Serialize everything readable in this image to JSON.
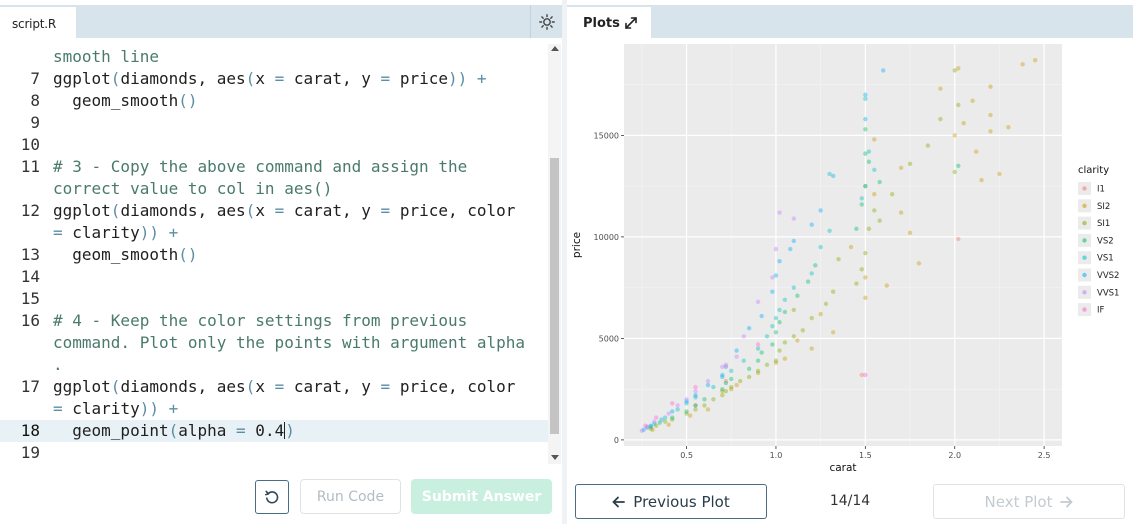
{
  "editor": {
    "tab_label": "script.R",
    "theme_icon": "sun-icon",
    "lines": [
      {
        "num": "",
        "parts": [
          [
            "cm",
            "smooth line"
          ]
        ]
      },
      {
        "num": "7",
        "parts": [
          [
            "",
            "ggplot"
          ],
          [
            "op",
            "("
          ],
          [
            "",
            "diamonds, "
          ],
          [
            "",
            "aes"
          ],
          [
            "op",
            "("
          ],
          [
            "",
            "x "
          ],
          [
            "op",
            "="
          ],
          [
            "",
            " carat, y "
          ],
          [
            "op",
            "="
          ],
          [
            "",
            " price"
          ],
          [
            "op",
            "))"
          ],
          [
            "",
            " "
          ],
          [
            "op",
            "+"
          ]
        ]
      },
      {
        "num": "8",
        "parts": [
          [
            "",
            "  geom_smooth"
          ],
          [
            "op",
            "()"
          ]
        ]
      },
      {
        "num": "9",
        "parts": []
      },
      {
        "num": "10",
        "parts": []
      },
      {
        "num": "11",
        "parts": [
          [
            "cm",
            "# 3 - Copy the above command and assign the"
          ]
        ]
      },
      {
        "num": "",
        "parts": [
          [
            "cm",
            "correct value to col in aes()"
          ]
        ]
      },
      {
        "num": "12",
        "parts": [
          [
            "",
            "ggplot"
          ],
          [
            "op",
            "("
          ],
          [
            "",
            "diamonds, "
          ],
          [
            "",
            "aes"
          ],
          [
            "op",
            "("
          ],
          [
            "",
            "x "
          ],
          [
            "op",
            "="
          ],
          [
            "",
            " carat, y "
          ],
          [
            "op",
            "="
          ],
          [
            "",
            " price, color"
          ]
        ]
      },
      {
        "num": "",
        "parts": [
          [
            "op",
            "="
          ],
          [
            "",
            " clarity"
          ],
          [
            "op",
            "))"
          ],
          [
            "",
            " "
          ],
          [
            "op",
            "+"
          ]
        ]
      },
      {
        "num": "13",
        "parts": [
          [
            "",
            "  geom_smooth"
          ],
          [
            "op",
            "()"
          ]
        ]
      },
      {
        "num": "14",
        "parts": []
      },
      {
        "num": "15",
        "parts": []
      },
      {
        "num": "16",
        "parts": [
          [
            "cm",
            "# 4 - Keep the color settings from previous"
          ]
        ]
      },
      {
        "num": "",
        "parts": [
          [
            "cm",
            "command. Plot only the points with argument alpha"
          ]
        ]
      },
      {
        "num": "",
        "parts": [
          [
            "cm",
            "."
          ]
        ]
      },
      {
        "num": "17",
        "parts": [
          [
            "",
            "ggplot"
          ],
          [
            "op",
            "("
          ],
          [
            "",
            "diamonds, "
          ],
          [
            "",
            "aes"
          ],
          [
            "op",
            "("
          ],
          [
            "",
            "x "
          ],
          [
            "op",
            "="
          ],
          [
            "",
            " carat, y "
          ],
          [
            "op",
            "="
          ],
          [
            "",
            " price, color"
          ]
        ]
      },
      {
        "num": "",
        "parts": [
          [
            "op",
            "="
          ],
          [
            "",
            " clarity"
          ],
          [
            "op",
            "))"
          ],
          [
            "",
            " "
          ],
          [
            "op",
            "+"
          ]
        ]
      },
      {
        "num": "18",
        "active": true,
        "parts": [
          [
            "",
            "  geom_point"
          ],
          [
            "op",
            "("
          ],
          [
            "",
            "alpha "
          ],
          [
            "op",
            "="
          ],
          [
            "",
            " 0.4"
          ],
          [
            "cursor",
            ""
          ],
          [
            "op",
            ")"
          ]
        ]
      },
      {
        "num": "19",
        "parts": []
      }
    ],
    "reset_icon": "reset-icon",
    "run_label": "Run Code",
    "submit_label": "Submit Answer"
  },
  "plot_panel": {
    "tab_label": "Plots",
    "expand_icon": "expand-icon",
    "prev_label": "Previous Plot",
    "next_label": "Next Plot",
    "counter": "14/14"
  },
  "chart_data": {
    "type": "scatter",
    "xlabel": "carat",
    "ylabel": "price",
    "xlim": [
      0.15,
      2.6
    ],
    "ylim": [
      -300,
      19500
    ],
    "xticks": [
      0.5,
      1.0,
      1.5,
      2.0,
      2.5
    ],
    "xtick_labels": [
      "0.5",
      "1.0",
      "1.5",
      "2.0",
      "2.5"
    ],
    "yticks": [
      0,
      5000,
      10000,
      15000
    ],
    "ytick_labels": [
      "0",
      "5000",
      "10000",
      "15000"
    ],
    "grid": true,
    "alpha": 0.4,
    "legend": {
      "title": "clarity",
      "placement": "right",
      "entries": [
        {
          "name": "I1",
          "color": "#F8766D"
        },
        {
          "name": "SI2",
          "color": "#CD9600"
        },
        {
          "name": "SI1",
          "color": "#7CAE00"
        },
        {
          "name": "VS2",
          "color": "#00BE67"
        },
        {
          "name": "VS1",
          "color": "#00BFC4"
        },
        {
          "name": "VVS2",
          "color": "#00A9FF"
        },
        {
          "name": "VVS1",
          "color": "#C77CFF"
        },
        {
          "name": "IF",
          "color": "#FF61CC"
        }
      ]
    },
    "series": [
      {
        "name": "I1",
        "x": [
          0.72,
          1.48,
          2.02,
          0.55
        ],
        "y": [
          2900,
          3200,
          9900,
          1700
        ]
      },
      {
        "name": "SI2",
        "x": [
          2.45,
          2.38,
          2.2,
          2.1,
          2.2,
          2.05,
          2.2,
          2.0,
          2.12,
          2.25,
          2.3,
          2.15,
          1.7,
          1.55,
          1.75,
          1.8,
          1.62,
          1.5,
          1.42,
          1.5,
          1.25,
          1.32,
          1.2,
          1.12,
          1.05,
          1.0,
          0.9,
          0.78,
          0.75,
          0.7,
          0.62,
          0.52,
          0.4,
          0.31,
          2.02,
          1.92,
          1.7,
          1.55
        ],
        "y": [
          18700,
          18500,
          17400,
          16700,
          16000,
          15600,
          15200,
          15000,
          14200,
          13100,
          15400,
          12800,
          13400,
          12100,
          10200,
          8700,
          7600,
          8000,
          9500,
          7000,
          6200,
          5300,
          4500,
          4900,
          4000,
          3800,
          3300,
          2700,
          2500,
          2400,
          1500,
          1200,
          750,
          500,
          18300,
          17300,
          11200,
          14800
        ]
      },
      {
        "name": "SI1",
        "x": [
          2.0,
          2.02,
          1.92,
          1.85,
          1.75,
          1.65,
          1.55,
          1.52,
          1.5,
          1.48,
          1.45,
          1.32,
          1.28,
          1.2,
          1.15,
          1.1,
          1.05,
          1.02,
          1.0,
          0.95,
          0.9,
          0.85,
          0.8,
          0.75,
          0.72,
          0.7,
          0.65,
          0.6,
          0.55,
          0.5,
          0.42,
          0.38,
          0.33,
          0.3,
          2.0,
          1.58,
          1.5,
          1.35,
          1.1
        ],
        "y": [
          18200,
          16500,
          15800,
          14500,
          13600,
          12100,
          11300,
          10400,
          9200,
          8400,
          7700,
          7300,
          6700,
          6000,
          5400,
          5100,
          4800,
          4400,
          3900,
          3700,
          3400,
          3100,
          2900,
          2600,
          2400,
          2200,
          2000,
          1700,
          1500,
          1300,
          1000,
          900,
          700,
          550,
          13200,
          10800,
          12500,
          8900,
          6400
        ]
      },
      {
        "name": "VS2",
        "x": [
          1.5,
          1.52,
          1.58,
          1.48,
          1.45,
          1.22,
          1.18,
          1.12,
          1.05,
          1.02,
          1.0,
          0.98,
          0.92,
          0.9,
          0.85,
          0.75,
          0.72,
          0.7,
          0.6,
          0.55,
          0.5,
          0.42,
          0.35,
          0.3,
          2.02,
          1.5
        ],
        "y": [
          15300,
          13700,
          12700,
          11600,
          10400,
          8600,
          7800,
          7100,
          6300,
          5800,
          5300,
          4700,
          4300,
          3900,
          3500,
          3000,
          2800,
          2500,
          2000,
          1700,
          1400,
          1100,
          850,
          650,
          13500,
          14100
        ]
      },
      {
        "name": "VS1",
        "x": [
          1.5,
          1.52,
          1.55,
          1.48,
          1.3,
          1.25,
          1.2,
          1.1,
          1.05,
          1.02,
          1.0,
          0.98,
          0.95,
          0.9,
          0.82,
          0.75,
          0.7,
          0.65,
          0.55,
          0.5,
          0.45,
          0.38,
          0.32,
          0.28,
          1.5,
          1.3
        ],
        "y": [
          16800,
          14200,
          13300,
          11900,
          10300,
          9500,
          8200,
          7500,
          6900,
          6400,
          6000,
          5600,
          5100,
          4500,
          3900,
          3400,
          3100,
          2600,
          2100,
          1800,
          1500,
          1100,
          800,
          600,
          12500,
          13100
        ]
      },
      {
        "name": "VVS2",
        "x": [
          1.5,
          1.6,
          1.32,
          1.25,
          1.2,
          1.1,
          1.02,
          1.0,
          0.98,
          0.92,
          0.85,
          0.78,
          0.72,
          0.7,
          0.62,
          0.55,
          0.5,
          0.42,
          0.36,
          0.3,
          0.26,
          1.5,
          1.08
        ],
        "y": [
          17000,
          18200,
          13000,
          11300,
          10600,
          9800,
          8800,
          8100,
          7300,
          6100,
          5500,
          4400,
          3600,
          3200,
          2700,
          2200,
          1900,
          1400,
          1000,
          700,
          500,
          15800,
          9400
        ]
      },
      {
        "name": "VVS1",
        "x": [
          1.02,
          1.0,
          0.98,
          0.9,
          0.82,
          0.78,
          0.7,
          0.62,
          0.55,
          0.5,
          0.45,
          0.4,
          0.32,
          0.28,
          0.25,
          1.1
        ],
        "y": [
          11200,
          9400,
          8000,
          6800,
          5100,
          4100,
          3600,
          2900,
          2400,
          2000,
          1700,
          1300,
          900,
          650,
          450,
          10900
        ]
      },
      {
        "name": "IF",
        "x": [
          1.5,
          0.9,
          0.72,
          0.55,
          0.42,
          0.33,
          0.27
        ],
        "y": [
          3200,
          4700,
          3700,
          2600,
          1800,
          1100,
          700
        ]
      }
    ]
  }
}
